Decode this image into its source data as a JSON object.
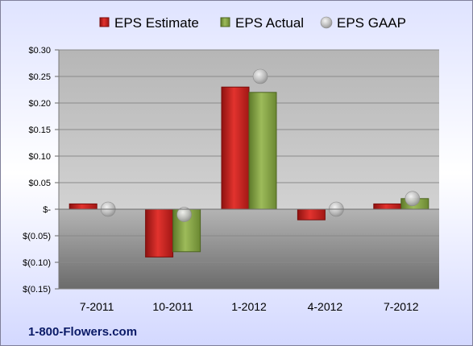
{
  "chart_data": {
    "type": "bar",
    "categories": [
      "7-2011",
      "10-2011",
      "1-2012",
      "4-2012",
      "7-2012"
    ],
    "series": [
      {
        "name": "EPS Estimate",
        "kind": "bar",
        "color": "#c0201e",
        "values": [
          0.01,
          -0.09,
          0.23,
          -0.02,
          0.01
        ]
      },
      {
        "name": "EPS Actual",
        "kind": "bar",
        "color": "#7f9a3c",
        "values": [
          0.0,
          -0.08,
          0.22,
          0.0,
          0.02
        ]
      },
      {
        "name": "EPS GAAP",
        "kind": "scatter",
        "color": "#b8b8b8",
        "values": [
          0.0,
          -0.01,
          0.25,
          0.0,
          0.02
        ]
      }
    ],
    "ylim": [
      -0.15,
      0.3
    ],
    "yticks": [
      0.3,
      0.25,
      0.2,
      0.15,
      0.1,
      0.05,
      0,
      -0.05,
      -0.1,
      -0.15
    ],
    "ytick_labels": [
      "$0.30",
      "$0.25",
      "$0.20",
      "$0.15",
      "$0.10",
      "$0.05",
      "$-",
      "$(0.05)",
      "$(0.10)",
      "$(0.15)"
    ],
    "legend_position": "top",
    "grid": true,
    "title": "",
    "xlabel": "",
    "ylabel": ""
  },
  "brand": "1-800-Flowers.com"
}
